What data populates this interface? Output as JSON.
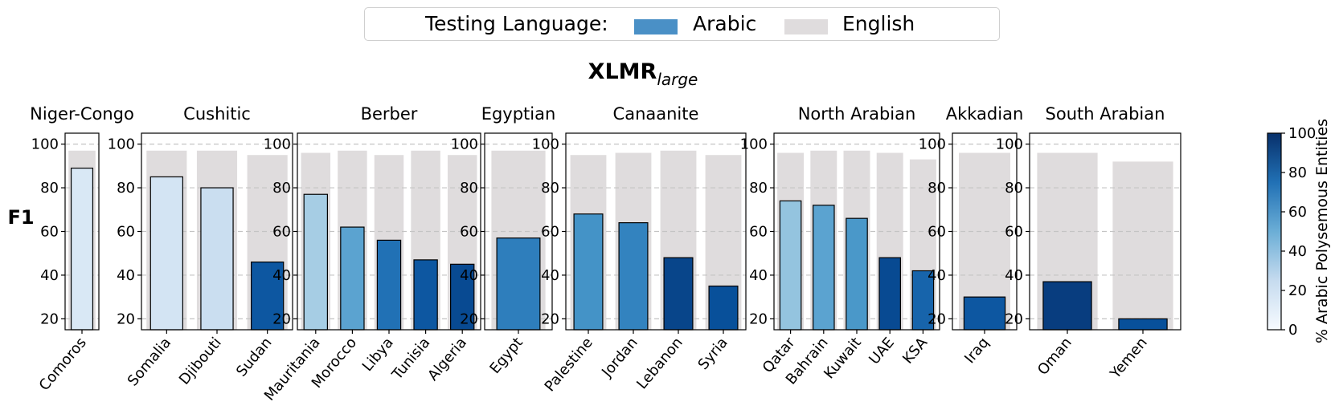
{
  "legend": {
    "title": "Testing Language:",
    "entries": [
      {
        "label": "Arabic",
        "color": "#4a90c6"
      },
      {
        "label": "English",
        "color": "#dfdcdd"
      }
    ]
  },
  "figure_title_main": "XLMR",
  "figure_title_sub": "large",
  "y_label": "F1",
  "colorbar": {
    "label": "% Arabic Polysemous Entities",
    "ticks": [
      0,
      20,
      40,
      60,
      80,
      100
    ],
    "range": [
      0,
      100
    ],
    "color_low": "#f7fbff",
    "color_high": "#08306b"
  },
  "chart_data": [
    {
      "type": "bar",
      "title": "Niger-Congo",
      "categories": [
        "Comoros"
      ],
      "ylim": [
        15,
        105
      ],
      "yticks": [
        20,
        40,
        60,
        80,
        100
      ],
      "series": [
        {
          "name": "Arabic",
          "values": [
            89
          ],
          "polysemy_pct": [
            15
          ]
        },
        {
          "name": "English",
          "values": [
            97
          ]
        }
      ]
    },
    {
      "type": "bar",
      "title": "Cushitic",
      "categories": [
        "Somalia",
        "Djibouti",
        "Sudan"
      ],
      "ylim": [
        15,
        105
      ],
      "yticks": [
        20,
        40,
        60,
        80,
        100
      ],
      "series": [
        {
          "name": "Arabic",
          "values": [
            85,
            80,
            46
          ],
          "polysemy_pct": [
            18,
            23,
            85
          ]
        },
        {
          "name": "English",
          "values": [
            97,
            97,
            95
          ]
        }
      ]
    },
    {
      "type": "bar",
      "title": "Berber",
      "categories": [
        "Mauritania",
        "Morocco",
        "Libya",
        "Tunisia",
        "Algeria"
      ],
      "ylim": [
        15,
        105
      ],
      "yticks": [
        20,
        40,
        60,
        80,
        100
      ],
      "series": [
        {
          "name": "Arabic",
          "values": [
            77,
            62,
            56,
            47,
            45
          ],
          "polysemy_pct": [
            35,
            55,
            75,
            85,
            90
          ]
        },
        {
          "name": "English",
          "values": [
            96,
            97,
            95,
            97,
            95
          ]
        }
      ]
    },
    {
      "type": "bar",
      "title": "Egyptian",
      "categories": [
        "Egypt"
      ],
      "ylim": [
        15,
        105
      ],
      "yticks": [
        20,
        40,
        60,
        80,
        100
      ],
      "series": [
        {
          "name": "Arabic",
          "values": [
            57
          ],
          "polysemy_pct": [
            70
          ]
        },
        {
          "name": "English",
          "values": [
            97
          ]
        }
      ]
    },
    {
      "type": "bar",
      "title": "Canaanite",
      "categories": [
        "Palestine",
        "Jordan",
        "Lebanon",
        "Syria"
      ],
      "ylim": [
        15,
        105
      ],
      "yticks": [
        20,
        40,
        60,
        80,
        100
      ],
      "series": [
        {
          "name": "Arabic",
          "values": [
            68,
            64,
            48,
            35
          ],
          "polysemy_pct": [
            62,
            68,
            92,
            88
          ]
        },
        {
          "name": "English",
          "values": [
            95,
            96,
            97,
            95
          ]
        }
      ]
    },
    {
      "type": "bar",
      "title": "North Arabian",
      "categories": [
        "Qatar",
        "Bahrain",
        "Kuwait",
        "UAE",
        "KSA"
      ],
      "ylim": [
        15,
        105
      ],
      "yticks": [
        20,
        40,
        60,
        80,
        100
      ],
      "series": [
        {
          "name": "Arabic",
          "values": [
            74,
            72,
            66,
            48,
            42
          ],
          "polysemy_pct": [
            40,
            55,
            60,
            90,
            80
          ]
        },
        {
          "name": "English",
          "values": [
            96,
            97,
            97,
            96,
            93
          ]
        }
      ]
    },
    {
      "type": "bar",
      "title": "Akkadian",
      "categories": [
        "Iraq"
      ],
      "ylim": [
        15,
        105
      ],
      "yticks": [
        20,
        40,
        60,
        80,
        100
      ],
      "series": [
        {
          "name": "Arabic",
          "values": [
            30
          ],
          "polysemy_pct": [
            85
          ]
        },
        {
          "name": "English",
          "values": [
            96
          ]
        }
      ]
    },
    {
      "type": "bar",
      "title": "South Arabian",
      "categories": [
        "Oman",
        "Yemen"
      ],
      "ylim": [
        15,
        105
      ],
      "yticks": [
        20,
        40,
        60,
        80,
        100
      ],
      "series": [
        {
          "name": "Arabic",
          "values": [
            37,
            20
          ],
          "polysemy_pct": [
            95,
            88
          ]
        },
        {
          "name": "English",
          "values": [
            96,
            92
          ]
        }
      ]
    }
  ]
}
